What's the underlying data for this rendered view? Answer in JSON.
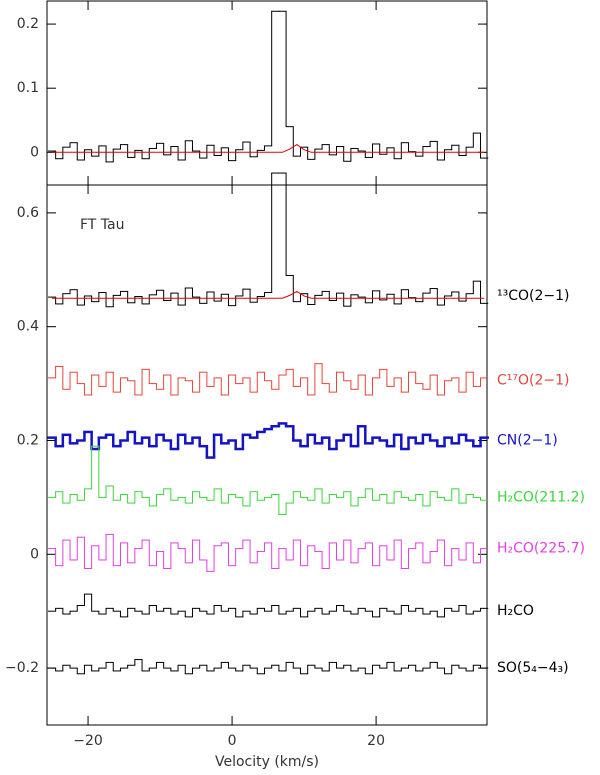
{
  "chart_data": [
    {
      "type": "line",
      "drawstyle": "steps-mid",
      "xlim": [
        -25.7,
        35.4
      ],
      "xticks": [
        -20,
        0,
        20
      ],
      "show_xticklabels": false,
      "ylim": [
        -0.051,
        0.236
      ],
      "yticks": [
        0,
        0.1,
        0.2
      ],
      "x": [
        -25,
        -24,
        -23,
        -22,
        -21,
        -20,
        -19,
        -18,
        -17,
        -16,
        -15,
        -14,
        -13,
        -12,
        -11,
        -10,
        -9,
        -8,
        -7,
        -6,
        -5,
        -4,
        -3,
        -2,
        -1,
        0,
        1,
        2,
        3,
        4,
        5,
        6,
        7,
        8,
        9,
        10,
        11,
        12,
        13,
        14,
        15,
        16,
        17,
        18,
        19,
        20,
        21,
        22,
        23,
        24,
        25,
        26,
        27,
        28,
        29,
        30,
        31,
        32,
        33,
        34,
        35
      ],
      "series": [
        {
          "color": "#000000",
          "linewidth": 1,
          "drawstyle": "steps-mid",
          "values": [
            0.002,
            -0.01,
            0.008,
            0.015,
            -0.012,
            0.004,
            -0.006,
            0.01,
            -0.015,
            0.005,
            0.012,
            -0.008,
            0.003,
            -0.01,
            0.006,
            0.014,
            -0.004,
            0.009,
            -0.012,
            0.018,
            0.002,
            -0.009,
            0.011,
            -0.005,
            0.007,
            -0.013,
            0.004,
            0.016,
            -0.007,
            0.003,
            0.01,
            0.22,
            0.22,
            0.04,
            -0.006,
            0.008,
            -0.011,
            0.005,
            0.012,
            -0.004,
            0.009,
            -0.014,
            0.006,
            0.002,
            -0.008,
            0.013,
            -0.003,
            0.007,
            -0.01,
            0.015,
            0.001,
            -0.006,
            0.009,
            0.017,
            -0.012,
            0.004,
            0.011,
            -0.005,
            0.008,
            0.03,
            -0.009
          ]
        },
        {
          "color": "#e00000",
          "linewidth": 1,
          "drawstyle": "default",
          "values": [
            0,
            0,
            0,
            0,
            0,
            0,
            0,
            0,
            0,
            0,
            0,
            0,
            0,
            0,
            0,
            0,
            0,
            0,
            0,
            0,
            0,
            0,
            0,
            0,
            0,
            0,
            0,
            0,
            0,
            0,
            0,
            0,
            0,
            0.005,
            0.012,
            0.004,
            0,
            0,
            0,
            0,
            0,
            0,
            0,
            0,
            0,
            0,
            0,
            0,
            0,
            0,
            0,
            0,
            0,
            0,
            0,
            0,
            0,
            0,
            0,
            0,
            0
          ]
        }
      ]
    },
    {
      "type": "line",
      "drawstyle": "steps-mid",
      "annotation": "FT Tau",
      "xlabel": "Velocity (km/s)",
      "xlim": [
        -25.7,
        35.4
      ],
      "xticks": [
        {
          "value": -20,
          "label": "−20"
        },
        0,
        20
      ],
      "ylim": [
        -0.3,
        0.649
      ],
      "yticks": [
        {
          "value": -0.2,
          "label": "−0.2"
        },
        0,
        0.2,
        0.4,
        0.6
      ],
      "x": [
        -25,
        -24,
        -23,
        -22,
        -21,
        -20,
        -19,
        -18,
        -17,
        -16,
        -15,
        -14,
        -13,
        -12,
        -11,
        -10,
        -9,
        -8,
        -7,
        -6,
        -5,
        -4,
        -3,
        -2,
        -1,
        0,
        1,
        2,
        3,
        4,
        5,
        6,
        7,
        8,
        9,
        10,
        11,
        12,
        13,
        14,
        15,
        16,
        17,
        18,
        19,
        20,
        21,
        22,
        23,
        24,
        25,
        26,
        27,
        28,
        29,
        30,
        31,
        32,
        33,
        34,
        35
      ],
      "series": [
        {
          "name": "¹³CO(2−1)",
          "color": "#000000",
          "linewidth": 1,
          "drawstyle": "steps-mid",
          "values": [
            0.452,
            0.44,
            0.458,
            0.465,
            0.438,
            0.454,
            0.444,
            0.46,
            0.435,
            0.455,
            0.462,
            0.442,
            0.453,
            0.44,
            0.456,
            0.464,
            0.446,
            0.459,
            0.438,
            0.468,
            0.452,
            0.441,
            0.461,
            0.445,
            0.457,
            0.437,
            0.454,
            0.466,
            0.443,
            0.453,
            0.46,
            0.67,
            0.67,
            0.49,
            0.444,
            0.458,
            0.439,
            0.455,
            0.462,
            0.446,
            0.459,
            0.436,
            0.456,
            0.452,
            0.442,
            0.463,
            0.447,
            0.457,
            0.44,
            0.465,
            0.451,
            0.444,
            0.459,
            0.467,
            0.438,
            0.454,
            0.461,
            0.445,
            0.458,
            0.48,
            0.441
          ]
        },
        {
          "color": "#e00000",
          "linewidth": 1,
          "drawstyle": "default",
          "values": [
            0.45,
            0.45,
            0.45,
            0.45,
            0.45,
            0.45,
            0.45,
            0.45,
            0.45,
            0.45,
            0.45,
            0.45,
            0.45,
            0.45,
            0.45,
            0.45,
            0.45,
            0.45,
            0.45,
            0.45,
            0.45,
            0.45,
            0.45,
            0.45,
            0.45,
            0.45,
            0.45,
            0.45,
            0.45,
            0.45,
            0.45,
            0.45,
            0.45,
            0.455,
            0.462,
            0.454,
            0.45,
            0.45,
            0.45,
            0.45,
            0.45,
            0.45,
            0.45,
            0.45,
            0.45,
            0.45,
            0.45,
            0.45,
            0.45,
            0.45,
            0.45,
            0.45,
            0.45,
            0.45,
            0.45,
            0.45,
            0.45,
            0.45,
            0.45,
            0.45,
            0.45
          ]
        },
        {
          "name": "C¹⁷O(2−1)",
          "color": "#e8443a",
          "linewidth": 1,
          "drawstyle": "steps-mid",
          "values": [
            0.31,
            0.33,
            0.29,
            0.32,
            0.3,
            0.28,
            0.315,
            0.295,
            0.32,
            0.285,
            0.31,
            0.305,
            0.28,
            0.325,
            0.3,
            0.29,
            0.315,
            0.28,
            0.31,
            0.305,
            0.285,
            0.32,
            0.295,
            0.31,
            0.28,
            0.315,
            0.3,
            0.31,
            0.285,
            0.32,
            0.305,
            0.29,
            0.315,
            0.325,
            0.295,
            0.31,
            0.28,
            0.335,
            0.3,
            0.285,
            0.32,
            0.305,
            0.29,
            0.315,
            0.28,
            0.31,
            0.325,
            0.295,
            0.31,
            0.285,
            0.32,
            0.3,
            0.29,
            0.315,
            0.28,
            0.305,
            0.31,
            0.285,
            0.32,
            0.295,
            0.31
          ]
        },
        {
          "name": "CN(2−1)",
          "color": "#1414c4",
          "linewidth": 2.5,
          "drawstyle": "steps-mid",
          "values": [
            0.205,
            0.19,
            0.21,
            0.195,
            0.2,
            0.215,
            0.185,
            0.205,
            0.21,
            0.19,
            0.2,
            0.215,
            0.195,
            0.205,
            0.19,
            0.21,
            0.2,
            0.185,
            0.21,
            0.195,
            0.205,
            0.19,
            0.17,
            0.21,
            0.195,
            0.2,
            0.185,
            0.21,
            0.205,
            0.215,
            0.22,
            0.225,
            0.23,
            0.225,
            0.2,
            0.19,
            0.21,
            0.195,
            0.205,
            0.185,
            0.2,
            0.21,
            0.19,
            0.225,
            0.195,
            0.205,
            0.2,
            0.19,
            0.21,
            0.185,
            0.205,
            0.195,
            0.21,
            0.2,
            0.19,
            0.205,
            0.195,
            0.21,
            0.2,
            0.19,
            0.205
          ]
        },
        {
          "name": "H₂CO(211.2)",
          "color": "#3ad63a",
          "linewidth": 1,
          "drawstyle": "steps-mid",
          "values": [
            0.1,
            0.11,
            0.09,
            0.105,
            0.095,
            0.115,
            0.19,
            0.1,
            0.12,
            0.095,
            0.105,
            0.09,
            0.11,
            0.1,
            0.085,
            0.105,
            0.115,
            0.095,
            0.1,
            0.09,
            0.11,
            0.1,
            0.095,
            0.115,
            0.09,
            0.105,
            0.1,
            0.085,
            0.11,
            0.095,
            0.1,
            0.105,
            0.07,
            0.09,
            0.11,
            0.1,
            0.095,
            0.115,
            0.09,
            0.105,
            0.1,
            0.11,
            0.085,
            0.1,
            0.115,
            0.095,
            0.105,
            0.09,
            0.11,
            0.1,
            0.095,
            0.105,
            0.085,
            0.11,
            0.1,
            0.095,
            0.115,
            0.09,
            0.105,
            0.1,
            0.095
          ]
        },
        {
          "name": "H₂CO(225.7)",
          "color": "#e040e0",
          "linewidth": 1,
          "drawstyle": "steps-mid",
          "values": [
            0.01,
            -0.02,
            0.025,
            -0.01,
            0.03,
            -0.025,
            0.015,
            -0.01,
            0.035,
            -0.02,
            0.02,
            -0.015,
            0.01,
            0.025,
            -0.02,
            0.005,
            -0.025,
            0.02,
            0.01,
            -0.015,
            0.025,
            -0.01,
            -0.03,
            0.015,
            0.02,
            -0.02,
            0.01,
            0.025,
            -0.015,
            0.005,
            0.02,
            -0.025,
            0.01,
            -0.01,
            0.025,
            -0.02,
            0.015,
            0.005,
            -0.025,
            0.02,
            -0.01,
            0.025,
            -0.015,
            0.01,
            0.02,
            -0.02,
            0.015,
            -0.01,
            0.025,
            -0.025,
            0.01,
            0.02,
            -0.015,
            0.005,
            0.025,
            -0.02,
            0.01,
            -0.01,
            0.02,
            -0.015,
            0.01
          ]
        },
        {
          "name": "H₂CO",
          "color": "#000000",
          "linewidth": 1,
          "drawstyle": "steps-mid",
          "values": [
            -0.1,
            -0.095,
            -0.105,
            -0.1,
            -0.09,
            -0.07,
            -0.1,
            -0.105,
            -0.095,
            -0.1,
            -0.11,
            -0.095,
            -0.1,
            -0.105,
            -0.09,
            -0.1,
            -0.095,
            -0.105,
            -0.1,
            -0.11,
            -0.095,
            -0.1,
            -0.105,
            -0.09,
            -0.1,
            -0.095,
            -0.11,
            -0.1,
            -0.105,
            -0.095,
            -0.1,
            -0.09,
            -0.105,
            -0.1,
            -0.095,
            -0.11,
            -0.1,
            -0.095,
            -0.105,
            -0.1,
            -0.09,
            -0.1,
            -0.105,
            -0.095,
            -0.1,
            -0.11,
            -0.095,
            -0.1,
            -0.105,
            -0.09,
            -0.1,
            -0.095,
            -0.105,
            -0.1,
            -0.11,
            -0.095,
            -0.1,
            -0.09,
            -0.105,
            -0.1,
            -0.095
          ]
        },
        {
          "name": "SO(5₄−4₃)",
          "color": "#000000",
          "linewidth": 1,
          "drawstyle": "steps-mid",
          "values": [
            -0.2,
            -0.205,
            -0.195,
            -0.2,
            -0.21,
            -0.195,
            -0.205,
            -0.2,
            -0.19,
            -0.205,
            -0.2,
            -0.195,
            -0.185,
            -0.205,
            -0.2,
            -0.19,
            -0.2,
            -0.205,
            -0.195,
            -0.21,
            -0.2,
            -0.195,
            -0.205,
            -0.2,
            -0.19,
            -0.2,
            -0.205,
            -0.195,
            -0.2,
            -0.21,
            -0.2,
            -0.195,
            -0.205,
            -0.19,
            -0.2,
            -0.21,
            -0.195,
            -0.2,
            -0.205,
            -0.19,
            -0.2,
            -0.195,
            -0.205,
            -0.2,
            -0.21,
            -0.195,
            -0.2,
            -0.19,
            -0.205,
            -0.2,
            -0.195,
            -0.205,
            -0.2,
            -0.19,
            -0.2,
            -0.21,
            -0.195,
            -0.2,
            -0.205,
            -0.195,
            -0.2
          ]
        }
      ]
    }
  ]
}
